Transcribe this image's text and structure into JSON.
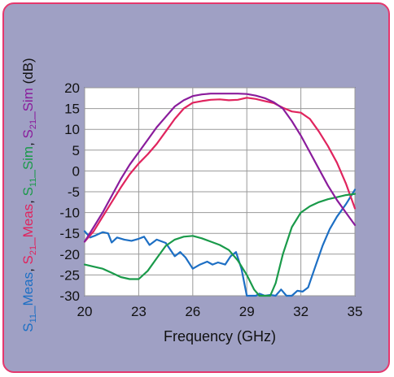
{
  "chart_data": {
    "type": "line",
    "xlabel": "Frequency (GHz)",
    "ylabel_parts": [
      {
        "series": "S11_Meas",
        "prefix": "S",
        "sub": "11",
        "suffix": "_Meas",
        "color": "#1d6fc4"
      },
      {
        "sep": ", "
      },
      {
        "series": "S21_Meas",
        "prefix": "S",
        "sub": "21",
        "suffix": "_Meas",
        "color": "#e0245e"
      },
      {
        "sep": ", "
      },
      {
        "series": "S11_Sim",
        "prefix": "S",
        "sub": "11",
        "suffix": "_Sim",
        "color": "#1a9a4a"
      },
      {
        "sep": ", "
      },
      {
        "series": "S21_Sim",
        "prefix": "S",
        "sub": "21",
        "suffix": "_Sim",
        "color": "#8a1c9c"
      },
      {
        "sep": " (dB)",
        "color": "#111111"
      }
    ],
    "xlim": [
      20,
      35
    ],
    "ylim": [
      -30,
      20
    ],
    "xticks": [
      20,
      23,
      26,
      29,
      32,
      35
    ],
    "yticks": [
      20,
      15,
      10,
      5,
      0,
      -5,
      -10,
      -15,
      -20,
      -25,
      -30
    ],
    "grid": true,
    "colors": {
      "background": "#9fa0c4",
      "border": "#e5386e",
      "plot": "#ffffff",
      "grid": "#999999"
    },
    "series": [
      {
        "name": "S11_Meas",
        "color": "#1d6fc4",
        "x": [
          20,
          20.3,
          20.6,
          21,
          21.3,
          21.5,
          21.8,
          22.2,
          22.6,
          23,
          23.3,
          23.6,
          24,
          24.5,
          25,
          25.3,
          25.6,
          26,
          26.4,
          26.8,
          27.1,
          27.4,
          27.8,
          28.1,
          28.4,
          28.7,
          29,
          29.5,
          29.7,
          30,
          30.3,
          30.6,
          30.9,
          31.2,
          31.5,
          31.8,
          32.1,
          32.4,
          32.8,
          33.2,
          33.6,
          34,
          34.5,
          35
        ],
        "y": [
          -14.5,
          -16,
          -15.5,
          -14.7,
          -15,
          -17.2,
          -16,
          -16.5,
          -16.8,
          -16.3,
          -15.8,
          -17.8,
          -16.5,
          -17.3,
          -20.5,
          -19.5,
          -20.8,
          -23.5,
          -22.5,
          -21.8,
          -22.5,
          -22,
          -22.5,
          -20.5,
          -19.5,
          -23.5,
          -30,
          -30,
          -29.5,
          -30,
          -29.8,
          -30,
          -28.5,
          -30,
          -30,
          -28.8,
          -29,
          -28,
          -23,
          -18,
          -14,
          -11,
          -8,
          -4.5
        ]
      },
      {
        "name": "S21_Meas",
        "color": "#e0245e",
        "x": [
          20,
          20.5,
          21,
          21.5,
          22,
          22.5,
          23,
          23.5,
          24,
          24.5,
          25,
          25.5,
          26,
          26.5,
          27,
          27.5,
          28,
          28.5,
          29,
          29.5,
          30,
          30.5,
          31,
          31.5,
          32,
          32.5,
          33,
          33.5,
          34,
          34.5,
          35
        ],
        "y": [
          -17,
          -14.5,
          -11,
          -7.5,
          -4,
          -0.8,
          1.8,
          4,
          6.5,
          9.5,
          12.5,
          15,
          16.4,
          16.8,
          17.1,
          17.2,
          17,
          17.1,
          17.6,
          17.3,
          16.8,
          16.3,
          15.2,
          14.3,
          14,
          12.5,
          9.5,
          6,
          2,
          -3,
          -9
        ]
      },
      {
        "name": "S11_Sim",
        "color": "#1a9a4a",
        "x": [
          20,
          20.5,
          21,
          21.5,
          22,
          22.5,
          23,
          23.5,
          24,
          24.5,
          25,
          25.5,
          26,
          26.5,
          27,
          27.5,
          28,
          28.5,
          29,
          29.4,
          29.7,
          30,
          30.3,
          30.6,
          31,
          31.5,
          32,
          32.5,
          33,
          33.5,
          34,
          34.5,
          35
        ],
        "y": [
          -22.5,
          -23,
          -23.5,
          -24.5,
          -25.5,
          -26,
          -26,
          -24,
          -21,
          -18,
          -16.5,
          -15.8,
          -15.6,
          -16.2,
          -17,
          -17.8,
          -19,
          -21.5,
          -25,
          -28.5,
          -30,
          -30,
          -30,
          -27,
          -20,
          -13.5,
          -10,
          -8.5,
          -7.5,
          -6.8,
          -6.3,
          -5.8,
          -5.5
        ]
      },
      {
        "name": "S21_Sim",
        "color": "#8a1c9c",
        "x": [
          20,
          20.5,
          21,
          21.5,
          22,
          22.5,
          23,
          23.5,
          24,
          24.5,
          25,
          25.5,
          26,
          26.5,
          27,
          27.5,
          28,
          28.5,
          29,
          29.5,
          30,
          30.5,
          31,
          31.5,
          32,
          32.5,
          33,
          33.5,
          34,
          34.5,
          35
        ],
        "y": [
          -17,
          -13.5,
          -10,
          -6,
          -2,
          1.5,
          4.5,
          7.5,
          10.5,
          13,
          15.5,
          17,
          18,
          18.4,
          18.6,
          18.6,
          18.6,
          18.6,
          18.5,
          18.1,
          17.5,
          16.5,
          15,
          12,
          8.5,
          4.5,
          0.5,
          -3.5,
          -7,
          -10,
          -13
        ]
      }
    ]
  }
}
